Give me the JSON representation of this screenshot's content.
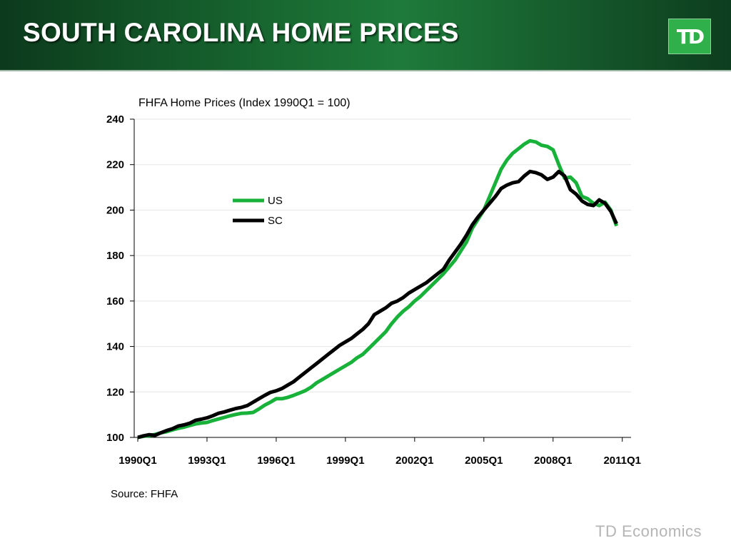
{
  "slide": {
    "title": "SOUTH CAROLINA HOME PRICES",
    "logo": "TD",
    "footer": "TD Economics"
  },
  "colors": {
    "us": "#18b23a",
    "sc": "#000000",
    "banner": "#1e7a3a"
  },
  "chart_data": {
    "type": "line",
    "title": "FHFA Home Prices (Index 1990Q1 = 100)",
    "source": "Source: FHFA",
    "xlabel": "",
    "ylabel": "",
    "ylim": [
      100,
      240
    ],
    "yticks": [
      100,
      120,
      140,
      160,
      180,
      200,
      220,
      240
    ],
    "xticks": [
      "1990Q1",
      "1993Q1",
      "1996Q1",
      "1999Q1",
      "2002Q1",
      "2005Q1",
      "2008Q1",
      "2011Q1"
    ],
    "grid": true,
    "legend": "upper-left-center",
    "x_start": "1990Q1",
    "x_end": "2011Q2",
    "series": [
      {
        "name": "US",
        "values": [
          100,
          100.5,
          100.8,
          101.3,
          102,
          102.5,
          103.3,
          104,
          104.5,
          105.2,
          105.9,
          106.3,
          106.6,
          107.4,
          108.1,
          108.8,
          109.5,
          110.1,
          110.6,
          110.7,
          111,
          112.5,
          114.2,
          115.5,
          117,
          117,
          117.6,
          118.5,
          119.5,
          120.5,
          122,
          124,
          125.5,
          127,
          128.5,
          130,
          131.5,
          133,
          135,
          136.5,
          139,
          141.5,
          144,
          146.5,
          150,
          153,
          155.5,
          157.5,
          160,
          162,
          164.5,
          167,
          169.5,
          172,
          175,
          178,
          182,
          186,
          192,
          196,
          200,
          206,
          212,
          218,
          222,
          225,
          227,
          229,
          230.5,
          230,
          228.5,
          228,
          226.5,
          220,
          214,
          214.5,
          212,
          206,
          205,
          203,
          202,
          203.5,
          200,
          193
        ]
      },
      {
        "name": "SC",
        "values": [
          100,
          100.7,
          101.2,
          100.9,
          102,
          103,
          103.8,
          105,
          105.5,
          106.2,
          107.5,
          108,
          108.6,
          109.5,
          110.6,
          111.2,
          112,
          112.7,
          113.2,
          114,
          115.5,
          117,
          118.5,
          119.8,
          120.5,
          121.5,
          123,
          124.5,
          126.5,
          128.5,
          130.5,
          132.5,
          134.5,
          136.5,
          138.5,
          140.5,
          142,
          143.5,
          145.5,
          147.5,
          150,
          154,
          155.5,
          157,
          159,
          160,
          161.5,
          163.5,
          165,
          166.5,
          168,
          170,
          172,
          174,
          178,
          181.5,
          185,
          189,
          193.5,
          197,
          200,
          203,
          206,
          209.5,
          211,
          212,
          212.5,
          215,
          217,
          216.5,
          215.5,
          213.5,
          214.5,
          217,
          215,
          209,
          207,
          204,
          202.5,
          202,
          204.5,
          203,
          199.5,
          194
        ]
      }
    ]
  }
}
